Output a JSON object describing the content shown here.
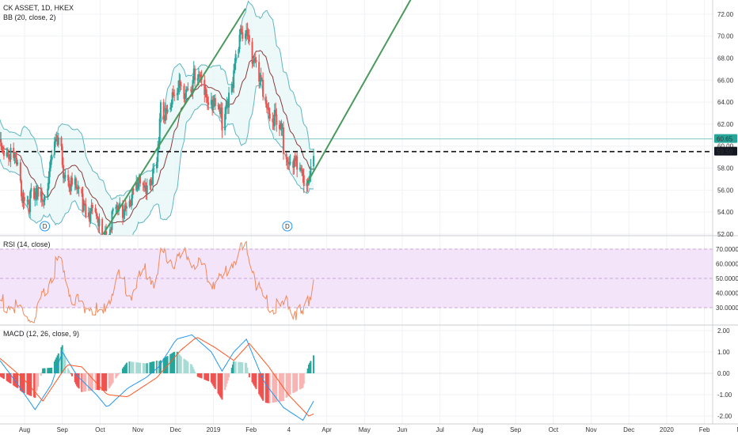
{
  "header": {
    "symbol_line": "CK ASSET, 1D, HKEX",
    "bb_label": "BB (20, close, 2)",
    "rsi_label": "RSI (14, close)",
    "macd_label": "MACD (12, 26, close, 9)"
  },
  "price_badges": {
    "last": "60.65",
    "level": "59.50",
    "last_color": "#26a69a"
  },
  "markers": [
    {
      "text": "D",
      "date": "2018-09-07"
    },
    {
      "text": "D",
      "date": "2019-05-14"
    }
  ],
  "colors": {
    "up": "#26a69a",
    "down": "#ef5350",
    "bb_band": "#5fb6c2",
    "bb_fill": "#e8f6f6",
    "bb_mid": "#8b3a3a",
    "trend": "#4a9a5e",
    "rsi_line": "#f08a5d",
    "rsi_fill": "#f3e4fa",
    "macd_line": "#2196f3",
    "signal_line": "#ff5722"
  },
  "chart_data": [
    {
      "type": "candlestick",
      "panel": "price",
      "x_labels": [
        "Aug",
        "Sep",
        "Oct",
        "Nov",
        "Dec",
        "2019",
        "Feb",
        "4",
        "Apr",
        "May",
        "Jun",
        "Jul",
        "Aug",
        "Sep",
        "Oct",
        "Nov",
        "Dec",
        "2020",
        "Feb",
        "Mar"
      ],
      "y_ticks": [
        "52.00",
        "54.00",
        "56.00",
        "58.00",
        "60.00",
        "62.00",
        "64.00",
        "66.00",
        "68.00",
        "70.00",
        "72.00"
      ],
      "ylim": [
        52,
        74
      ],
      "key_points": [
        {
          "date": "2018-07-23",
          "close": 61.0
        },
        {
          "date": "2018-08-06",
          "close": 59.5
        },
        {
          "date": "2018-08-16",
          "close": 56.0
        },
        {
          "date": "2018-08-28",
          "close": 55.5
        },
        {
          "date": "2018-09-07",
          "close": 56.5
        },
        {
          "date": "2018-09-14",
          "close": 59.5
        },
        {
          "date": "2018-09-21",
          "close": 60.8
        },
        {
          "date": "2018-09-28",
          "close": 58.0
        },
        {
          "date": "2018-10-12",
          "close": 56.0
        },
        {
          "date": "2018-10-26",
          "close": 54.5
        },
        {
          "date": "2018-11-05",
          "close": 52.5
        },
        {
          "date": "2018-11-16",
          "close": 54.0
        },
        {
          "date": "2018-11-30",
          "close": 55.5
        },
        {
          "date": "2018-12-14",
          "close": 57.0
        },
        {
          "date": "2018-12-31",
          "close": 58.0
        },
        {
          "date": "2019-01-04",
          "close": 63.5
        },
        {
          "date": "2019-01-18",
          "close": 65.0
        },
        {
          "date": "2019-02-01",
          "close": 66.5
        },
        {
          "date": "2019-02-15",
          "close": 66.5
        },
        {
          "date": "2019-02-27",
          "close": 64.5
        },
        {
          "date": "2019-03-08",
          "close": 63.0
        },
        {
          "date": "2019-03-15",
          "close": 65.5
        },
        {
          "date": "2019-03-22",
          "close": 68.0
        },
        {
          "date": "2019-03-29",
          "close": 71.0
        },
        {
          "date": "2019-04-02",
          "close": 72.0
        },
        {
          "date": "2019-04-10",
          "close": 68.0
        },
        {
          "date": "2019-04-18",
          "close": 65.5
        },
        {
          "date": "2019-04-30",
          "close": 63.0
        },
        {
          "date": "2019-05-10",
          "close": 61.0
        },
        {
          "date": "2019-05-21",
          "close": 59.0
        },
        {
          "date": "2019-05-30",
          "close": 57.0
        },
        {
          "date": "2019-06-05",
          "close": 58.0
        },
        {
          "date": "2019-06-10",
          "close": 60.65
        }
      ],
      "overlay": "Bollinger Bands (20, 2)",
      "horizontal_line": 59.5,
      "trend_lines": [
        {
          "from": {
            "date": "2018-11-06",
            "value": 52.0
          },
          "to": {
            "date": "2019-04-01",
            "value": 72.5
          }
        },
        {
          "from": {
            "date": "2019-06-03",
            "value": 56.6
          },
          "to": {
            "date": "2019-10-08",
            "value": 76.5
          }
        }
      ]
    },
    {
      "type": "line",
      "panel": "rsi",
      "y_ticks": [
        "30.0000",
        "40.0000",
        "50.0000",
        "60.0000",
        "70.0000"
      ],
      "ylim": [
        25,
        80
      ],
      "band": [
        30,
        70
      ],
      "key_points": [
        {
          "date": "2018-07-23",
          "value": 38
        },
        {
          "date": "2018-08-10",
          "value": 32
        },
        {
          "date": "2018-08-28",
          "value": 24
        },
        {
          "date": "2018-09-07",
          "value": 44
        },
        {
          "date": "2018-09-21",
          "value": 67
        },
        {
          "date": "2018-10-05",
          "value": 40
        },
        {
          "date": "2018-10-19",
          "value": 35
        },
        {
          "date": "2018-11-06",
          "value": 28
        },
        {
          "date": "2018-11-20",
          "value": 55
        },
        {
          "date": "2018-12-05",
          "value": 44
        },
        {
          "date": "2018-12-20",
          "value": 60
        },
        {
          "date": "2018-12-31",
          "value": 50
        },
        {
          "date": "2019-01-04",
          "value": 72
        },
        {
          "date": "2019-01-18",
          "value": 65
        },
        {
          "date": "2019-02-01",
          "value": 70
        },
        {
          "date": "2019-02-20",
          "value": 55
        },
        {
          "date": "2019-03-05",
          "value": 50
        },
        {
          "date": "2019-03-15",
          "value": 62
        },
        {
          "date": "2019-03-25",
          "value": 70
        },
        {
          "date": "2019-04-02",
          "value": 76
        },
        {
          "date": "2019-04-15",
          "value": 45
        },
        {
          "date": "2019-04-30",
          "value": 32
        },
        {
          "date": "2019-05-15",
          "value": 35
        },
        {
          "date": "2019-05-30",
          "value": 27
        },
        {
          "date": "2019-06-10",
          "value": 53
        }
      ]
    },
    {
      "type": "bar+line",
      "panel": "macd",
      "y_ticks": [
        "-2.00",
        "-1.00",
        "0.00",
        "1.00",
        "2.00"
      ],
      "ylim": [
        -2.2,
        2.2
      ],
      "series": [
        {
          "name": "MACD",
          "key_points": [
            {
              "date": "2018-07-23",
              "value": 0.6
            },
            {
              "date": "2018-08-10",
              "value": -0.5
            },
            {
              "date": "2018-08-28",
              "value": -1.7
            },
            {
              "date": "2018-09-14",
              "value": -0.5
            },
            {
              "date": "2018-09-25",
              "value": 1.0
            },
            {
              "date": "2018-10-10",
              "value": -0.1
            },
            {
              "date": "2018-10-30",
              "value": -1.0
            },
            {
              "date": "2018-11-10",
              "value": -1.6
            },
            {
              "date": "2018-12-01",
              "value": -0.7
            },
            {
              "date": "2018-12-20",
              "value": -0.2
            },
            {
              "date": "2019-01-02",
              "value": 0.3
            },
            {
              "date": "2019-01-20",
              "value": 1.6
            },
            {
              "date": "2019-02-05",
              "value": 1.8
            },
            {
              "date": "2019-02-25",
              "value": 1.0
            },
            {
              "date": "2019-03-08",
              "value": 0.1
            },
            {
              "date": "2019-03-20",
              "value": 1.0
            },
            {
              "date": "2019-04-02",
              "value": 1.6
            },
            {
              "date": "2019-04-20",
              "value": -0.4
            },
            {
              "date": "2019-05-10",
              "value": -1.6
            },
            {
              "date": "2019-05-30",
              "value": -2.2
            },
            {
              "date": "2019-06-10",
              "value": -1.3
            }
          ]
        },
        {
          "name": "Signal",
          "key_points": [
            {
              "date": "2018-07-23",
              "value": 0.7
            },
            {
              "date": "2018-08-15",
              "value": -0.2
            },
            {
              "date": "2018-09-05",
              "value": -1.3
            },
            {
              "date": "2018-09-30",
              "value": 0.4
            },
            {
              "date": "2018-10-15",
              "value": 0.3
            },
            {
              "date": "2018-11-10",
              "value": -1.0
            },
            {
              "date": "2018-12-01",
              "value": -1.1
            },
            {
              "date": "2018-12-31",
              "value": -0.2
            },
            {
              "date": "2019-01-25",
              "value": 1.1
            },
            {
              "date": "2019-02-10",
              "value": 1.7
            },
            {
              "date": "2019-03-01",
              "value": 1.2
            },
            {
              "date": "2019-03-20",
              "value": 0.6
            },
            {
              "date": "2019-04-05",
              "value": 1.4
            },
            {
              "date": "2019-04-25",
              "value": 0.3
            },
            {
              "date": "2019-05-15",
              "value": -1.0
            },
            {
              "date": "2019-06-05",
              "value": -2.0
            },
            {
              "date": "2019-06-10",
              "value": -1.9
            }
          ]
        },
        {
          "name": "Histogram",
          "note": "MACD minus Signal"
        }
      ]
    }
  ]
}
